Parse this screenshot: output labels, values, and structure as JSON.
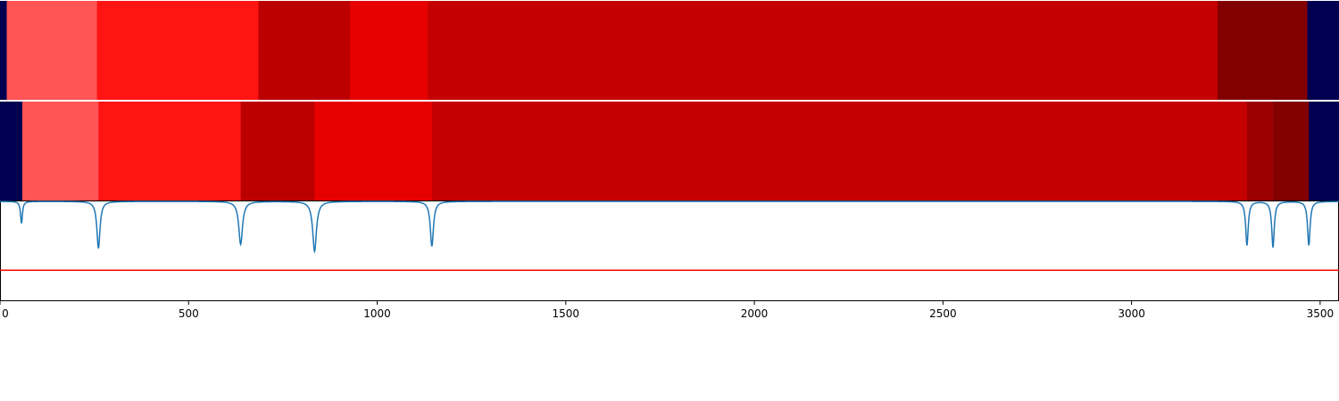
{
  "chart_data": {
    "type": "heatmap",
    "title": "",
    "xlabel": "",
    "ylabel": "",
    "xlim": [
      0,
      3550
    ],
    "x_ticks": [
      0,
      500,
      1000,
      1500,
      2000,
      2500,
      3000,
      3500
    ],
    "x_tick_labels": [
      "0",
      "500",
      "1000",
      "1500",
      "2000",
      "2500",
      "3000",
      "3500"
    ],
    "bands": [
      {
        "segments": [
          {
            "start": 0,
            "end": 18,
            "color": "#000050"
          },
          {
            "start": 18,
            "end": 257,
            "color": "#ff5555"
          },
          {
            "start": 257,
            "end": 685,
            "color": "#ff1414"
          },
          {
            "start": 685,
            "end": 928,
            "color": "#bc0000"
          },
          {
            "start": 928,
            "end": 1134,
            "color": "#e60000"
          },
          {
            "start": 1134,
            "end": 3228,
            "color": "#c40000"
          },
          {
            "start": 3228,
            "end": 3466,
            "color": "#820000"
          },
          {
            "start": 3466,
            "end": 3550,
            "color": "#000050"
          }
        ]
      },
      {
        "segments": [
          {
            "start": 0,
            "end": 59,
            "color": "#000050"
          },
          {
            "start": 59,
            "end": 261,
            "color": "#ff5555"
          },
          {
            "start": 261,
            "end": 638,
            "color": "#ff1414"
          },
          {
            "start": 638,
            "end": 834,
            "color": "#bc0000"
          },
          {
            "start": 834,
            "end": 1145,
            "color": "#e60000"
          },
          {
            "start": 1145,
            "end": 3306,
            "color": "#c40000"
          },
          {
            "start": 3306,
            "end": 3375,
            "color": "#9d0000"
          },
          {
            "start": 3375,
            "end": 3470,
            "color": "#820000"
          },
          {
            "start": 3470,
            "end": 3550,
            "color": "#000050"
          }
        ]
      }
    ],
    "profile": {
      "color": "#1f77b4",
      "baseline": 1.0,
      "ylim": [
        0,
        1.0
      ],
      "dips": [
        {
          "x": 57,
          "depth": 0.22,
          "width": 3
        },
        {
          "x": 261,
          "depth": 0.47,
          "width": 5
        },
        {
          "x": 638,
          "depth": 0.43,
          "width": 6
        },
        {
          "x": 834,
          "depth": 0.5,
          "width": 6
        },
        {
          "x": 1145,
          "depth": 0.45,
          "width": 5
        },
        {
          "x": 3306,
          "depth": 0.44,
          "width": 4
        },
        {
          "x": 3375,
          "depth": 0.46,
          "width": 4
        },
        {
          "x": 3470,
          "depth": 0.44,
          "width": 4
        }
      ],
      "threshold": {
        "y": 0.31,
        "color": "#ff0000"
      }
    }
  }
}
